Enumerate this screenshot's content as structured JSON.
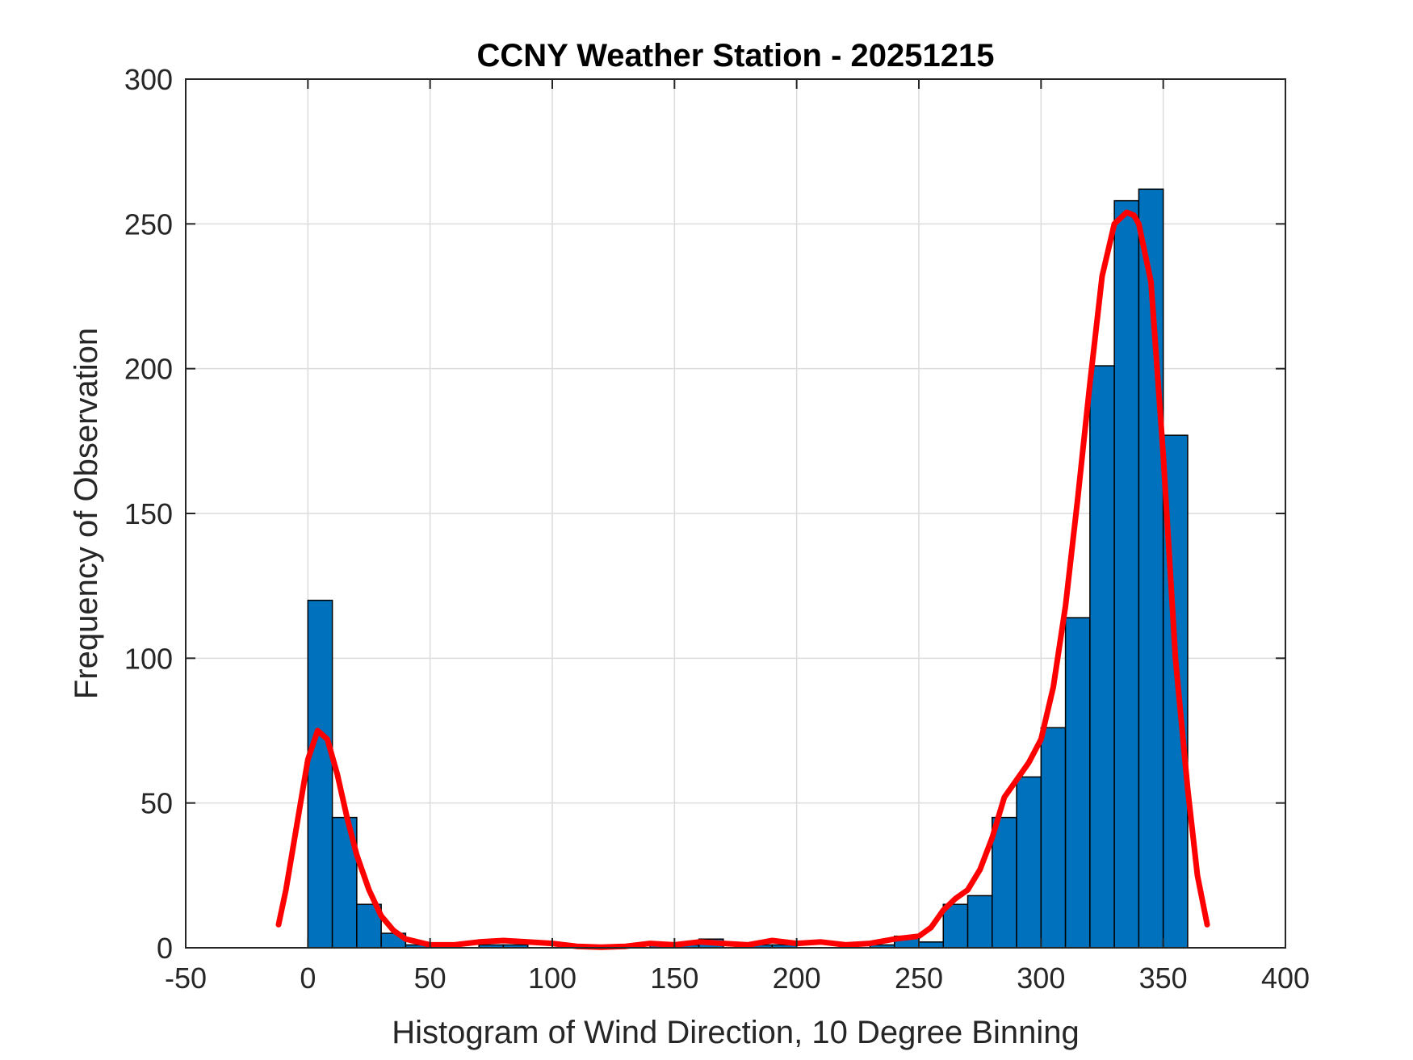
{
  "chart_data": {
    "type": "bar",
    "title": "CCNY Weather Station - 20251215",
    "xlabel": "Histogram of Wind Direction, 10 Degree Binning",
    "ylabel": "Frequency of Observation",
    "xlim": [
      -50,
      400
    ],
    "ylim": [
      0,
      300
    ],
    "xticks": [
      -50,
      0,
      50,
      100,
      150,
      200,
      250,
      300,
      350,
      400
    ],
    "yticks": [
      0,
      50,
      100,
      150,
      200,
      250,
      300
    ],
    "xtick_labels": [
      "-50",
      "0",
      "50",
      "100",
      "150",
      "200",
      "250",
      "300",
      "350",
      "400"
    ],
    "ytick_labels": [
      "0",
      "50",
      "100",
      "150",
      "200",
      "250",
      "300"
    ],
    "grid": true,
    "bin_width": 10,
    "bin_edges_start": [
      0,
      10,
      20,
      30,
      40,
      50,
      60,
      70,
      80,
      90,
      100,
      110,
      120,
      130,
      140,
      150,
      160,
      170,
      180,
      190,
      200,
      210,
      220,
      230,
      240,
      250,
      260,
      270,
      280,
      290,
      300,
      310,
      320,
      330,
      340,
      350
    ],
    "values": [
      120,
      45,
      15,
      5,
      1,
      0,
      0,
      1,
      1,
      0,
      0,
      0,
      0,
      0,
      1,
      1,
      3,
      0,
      1,
      1,
      0,
      0,
      0,
      1,
      4,
      2,
      15,
      18,
      45,
      59,
      76,
      114,
      201,
      258,
      262,
      177
    ],
    "bar_color": "#0072BD",
    "curve_color": "#FF0000",
    "density_curve": {
      "x": [
        -12,
        -9,
        -4,
        0,
        4,
        8,
        12,
        16,
        20,
        25,
        30,
        35,
        40,
        50,
        60,
        70,
        80,
        90,
        100,
        110,
        120,
        130,
        140,
        150,
        160,
        170,
        180,
        190,
        200,
        210,
        220,
        230,
        240,
        250,
        255,
        260,
        265,
        270,
        275,
        280,
        285,
        290,
        295,
        300,
        305,
        310,
        315,
        320,
        325,
        330,
        335,
        338,
        340,
        345,
        350,
        355,
        360,
        364,
        368
      ],
      "y": [
        8,
        20,
        45,
        65,
        75,
        72,
        60,
        45,
        32,
        20,
        11,
        6,
        3,
        1,
        1,
        2,
        2.5,
        2,
        1.5,
        0.5,
        0.2,
        0.5,
        1.5,
        1,
        2,
        1.5,
        1,
        2.5,
        1.5,
        2,
        1,
        1.5,
        3,
        4,
        7,
        13,
        17,
        20,
        27,
        38,
        52,
        58,
        64,
        72,
        90,
        118,
        155,
        195,
        232,
        250,
        254,
        253,
        250,
        230,
        170,
        100,
        55,
        25,
        8
      ]
    }
  }
}
